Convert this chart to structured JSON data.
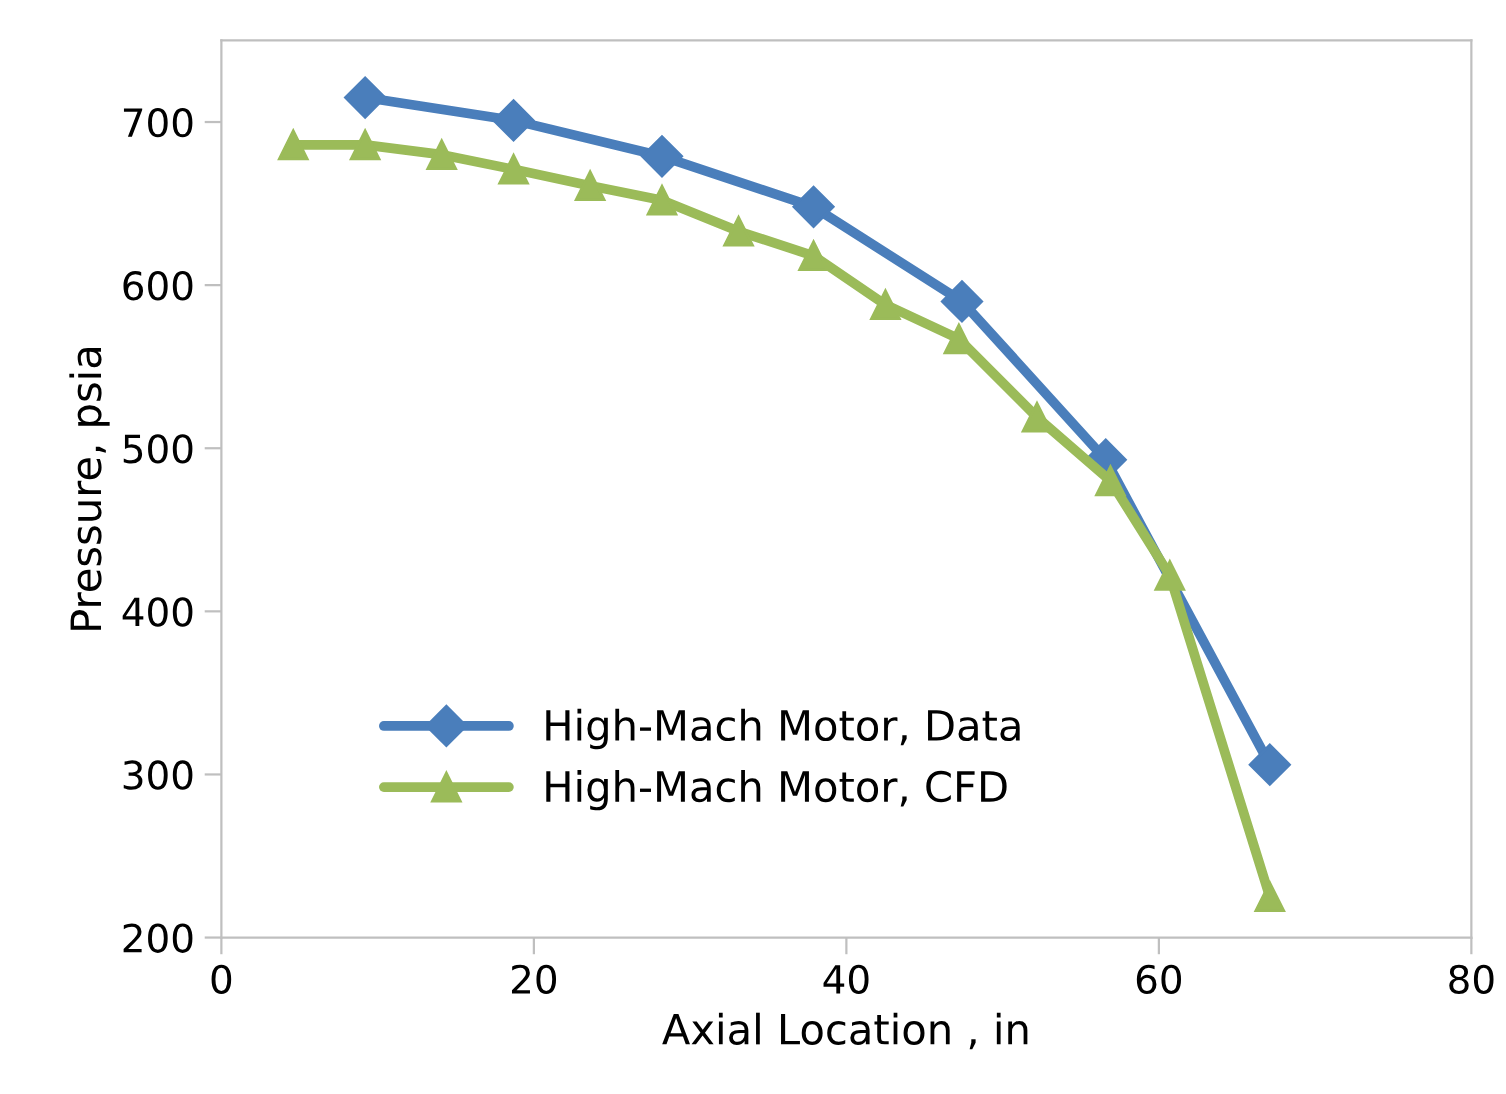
{
  "chart_data": {
    "type": "line",
    "xlabel": "Axial Location , in",
    "ylabel": "Pressure, psia",
    "xlim": [
      0,
      80
    ],
    "xticks": [
      0,
      20,
      40,
      60,
      80
    ],
    "ylim": [
      200,
      750
    ],
    "yticks": [
      200,
      300,
      400,
      500,
      600,
      700
    ],
    "grid": false,
    "legend": "bottom left",
    "series": [
      {
        "name": "High-Mach Motor, Data",
        "color": "#4a7ebb",
        "marker": "diamond",
        "x": [
          9.2,
          18.7,
          28.2,
          37.9,
          47.4,
          56.6,
          67.1
        ],
        "values": [
          715,
          701,
          679,
          648,
          590,
          493,
          306
        ]
      },
      {
        "name": "High-Mach Motor, CFD",
        "color": "#9bbb59",
        "marker": "triangle",
        "x": [
          4.6,
          9.2,
          14.1,
          18.7,
          23.6,
          28.2,
          33.1,
          37.9,
          42.5,
          47.2,
          52.2,
          56.9,
          60.7,
          67.1
        ],
        "values": [
          686,
          686,
          680,
          671,
          661,
          652,
          633,
          618,
          588,
          567,
          519,
          480,
          422,
          225
        ]
      }
    ]
  }
}
